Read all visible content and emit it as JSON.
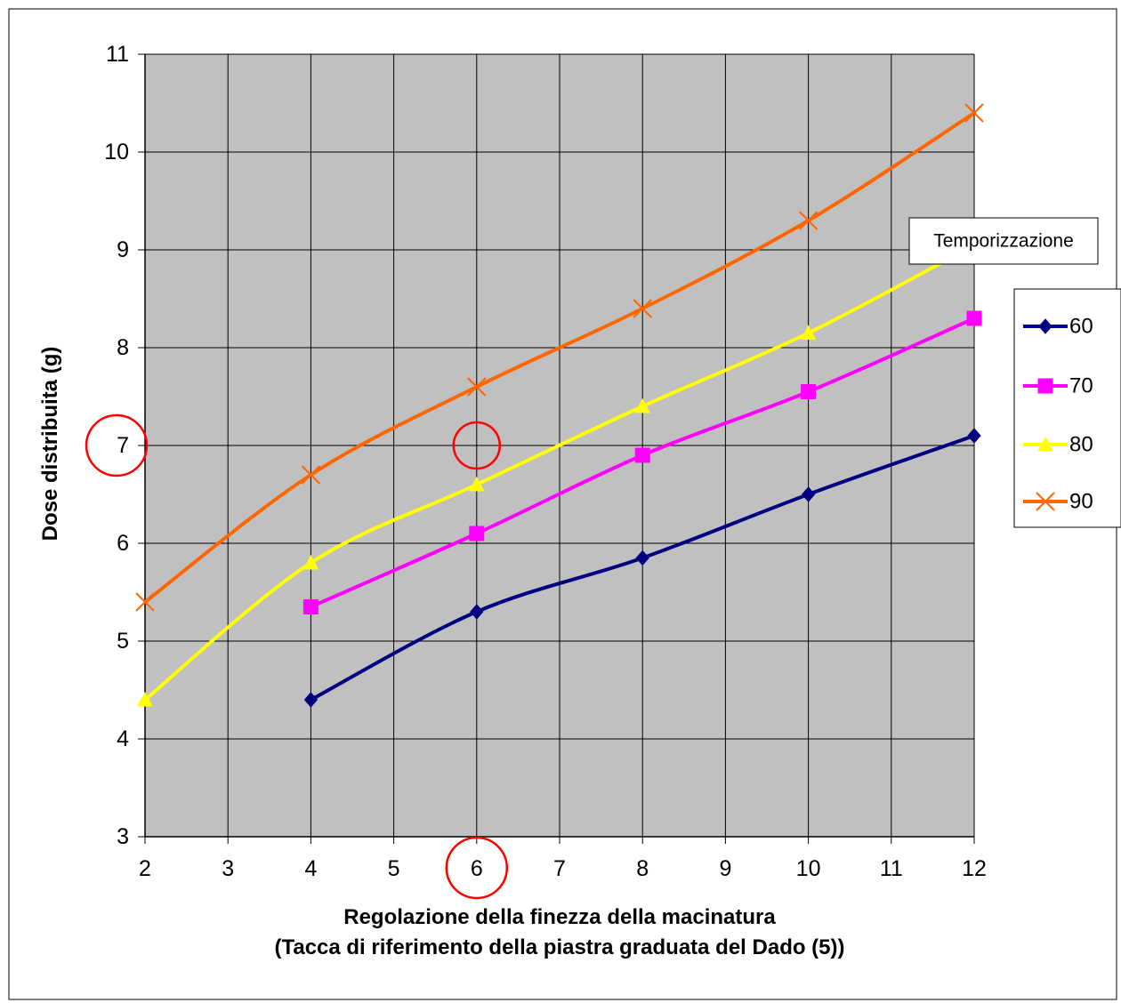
{
  "chart_data": {
    "type": "line",
    "title": "",
    "xlabel_line1": "Regolazione della finezza della macinatura",
    "xlabel_line2": "(Tacca di riferimento della piastra graduata del Dado (5))",
    "ylabel": "Dose distribuita (g)",
    "xlim": [
      2,
      12
    ],
    "ylim": [
      3,
      11
    ],
    "x_ticks": [
      "2",
      "3",
      "4",
      "5",
      "6",
      "7",
      "8",
      "9",
      "10",
      "11",
      "12"
    ],
    "y_ticks": [
      "3",
      "4",
      "5",
      "6",
      "7",
      "8",
      "9",
      "10",
      "11"
    ],
    "grid": true,
    "plot_background": "#c0c0c0",
    "legend_title": "Temporizzazione",
    "legend_position": "right",
    "series": [
      {
        "name": "60",
        "color": "#000080",
        "marker": "diamond",
        "x": [
          4,
          6,
          8,
          10,
          12
        ],
        "y": [
          4.4,
          5.3,
          5.85,
          6.5,
          7.1
        ]
      },
      {
        "name": "70",
        "color": "#ff00ff",
        "marker": "square",
        "x": [
          4,
          6,
          8,
          10,
          12
        ],
        "y": [
          5.35,
          6.1,
          6.9,
          7.55,
          8.3
        ]
      },
      {
        "name": "80",
        "color": "#ffff00",
        "marker": "triangle",
        "x": [
          2,
          4,
          6,
          8,
          10,
          12
        ],
        "y": [
          4.4,
          5.8,
          6.6,
          7.4,
          8.15,
          9.05
        ]
      },
      {
        "name": "90",
        "color": "#ff6600",
        "marker": "x",
        "x": [
          2,
          4,
          6,
          8,
          10,
          12
        ],
        "y": [
          5.4,
          6.7,
          7.6,
          8.4,
          9.3,
          10.4
        ]
      }
    ],
    "annotations": [
      {
        "type": "circle",
        "color": "#ff0000",
        "target": "y-tick",
        "value": "7"
      },
      {
        "type": "circle",
        "color": "#ff0000",
        "target": "point",
        "x": 6,
        "y": 7
      },
      {
        "type": "circle",
        "color": "#ff0000",
        "target": "x-tick",
        "value": "6"
      }
    ]
  }
}
